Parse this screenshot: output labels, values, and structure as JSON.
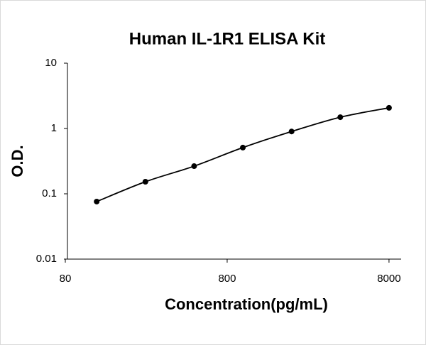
{
  "chart_data": {
    "type": "scatter",
    "title": "Human IL-1R1 ELISA Kit",
    "xlabel": "Concentration(pg/mL)",
    "ylabel": "O.D.",
    "x": [
      125,
      250,
      500,
      1000,
      2000,
      4000,
      8000
    ],
    "values": [
      0.076,
      0.153,
      0.265,
      0.51,
      0.9,
      1.49,
      2.07
    ],
    "color": "#000000",
    "line": true,
    "xlog": true,
    "ylog": true,
    "xlim": [
      80,
      10000
    ],
    "xticks": [
      80,
      800,
      8000
    ],
    "ylim": [
      0.01,
      10
    ],
    "yticks": [
      0.01,
      0.1,
      1,
      10
    ]
  }
}
